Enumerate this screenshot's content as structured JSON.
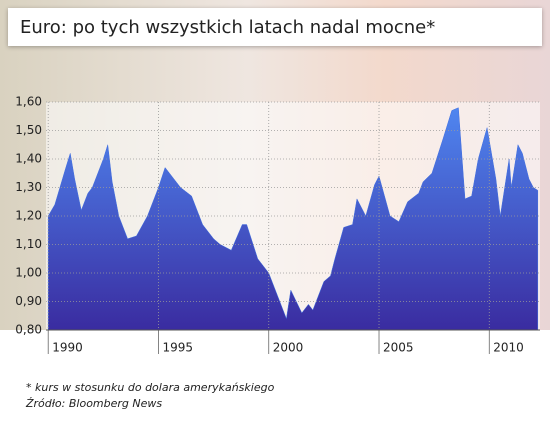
{
  "chart_data": {
    "type": "area",
    "title": "Euro: po tych wszystkich latach nadal mocne*",
    "notes": [
      "* kurs w stosunku do dolara amerykańskiego",
      "Źródło: Bloomberg News"
    ],
    "x": [
      1990.0,
      1990.3,
      1990.8,
      1991.0,
      1991.2,
      1991.5,
      1991.8,
      1992.0,
      1992.5,
      1992.7,
      1992.9,
      1993.2,
      1993.6,
      1994.0,
      1994.5,
      1995.0,
      1995.3,
      1995.7,
      1996.0,
      1996.5,
      1997.0,
      1997.5,
      1997.8,
      1998.3,
      1998.8,
      1999.0,
      1999.5,
      2000.0,
      2000.4,
      2000.8,
      2001.0,
      2001.5,
      2001.8,
      2002.0,
      2002.5,
      2002.8,
      2003.0,
      2003.4,
      2003.8,
      2004.0,
      2004.4,
      2004.8,
      2005.0,
      2005.5,
      2005.9,
      2006.3,
      2006.8,
      2007.0,
      2007.4,
      2007.9,
      2008.3,
      2008.6,
      2008.9,
      2009.2,
      2009.5,
      2009.9,
      2010.3,
      2010.5,
      2010.9,
      2011.0,
      2011.3,
      2011.5,
      2011.8,
      2012.0,
      2012.2
    ],
    "values": [
      1.2,
      1.24,
      1.37,
      1.42,
      1.33,
      1.22,
      1.28,
      1.3,
      1.4,
      1.45,
      1.32,
      1.2,
      1.12,
      1.13,
      1.2,
      1.3,
      1.37,
      1.33,
      1.3,
      1.27,
      1.17,
      1.12,
      1.1,
      1.08,
      1.17,
      1.17,
      1.05,
      1.0,
      0.92,
      0.84,
      0.94,
      0.86,
      0.89,
      0.87,
      0.97,
      0.99,
      1.05,
      1.16,
      1.17,
      1.26,
      1.2,
      1.31,
      1.34,
      1.2,
      1.18,
      1.25,
      1.28,
      1.32,
      1.35,
      1.47,
      1.57,
      1.58,
      1.26,
      1.27,
      1.4,
      1.51,
      1.33,
      1.2,
      1.4,
      1.3,
      1.45,
      1.42,
      1.33,
      1.3,
      1.29
    ],
    "color": "#3f6ee0",
    "xlim": [
      1989.9,
      2012.3
    ],
    "ylim": [
      0.8,
      1.6
    ],
    "xticks": [
      1990,
      1995,
      2000,
      2005,
      2010
    ],
    "yticks": [
      {
        "value": 0.8,
        "label": "0,80"
      },
      {
        "value": 0.9,
        "label": "0,90"
      },
      {
        "value": 1.0,
        "label": "1,00"
      },
      {
        "value": 1.1,
        "label": "1,10"
      },
      {
        "value": 1.2,
        "label": "1,20"
      },
      {
        "value": 1.3,
        "label": "1,30"
      },
      {
        "value": 1.4,
        "label": "1,40"
      },
      {
        "value": 1.5,
        "label": "1,50"
      },
      {
        "value": 1.6,
        "label": "1,60"
      }
    ],
    "grid": true
  }
}
